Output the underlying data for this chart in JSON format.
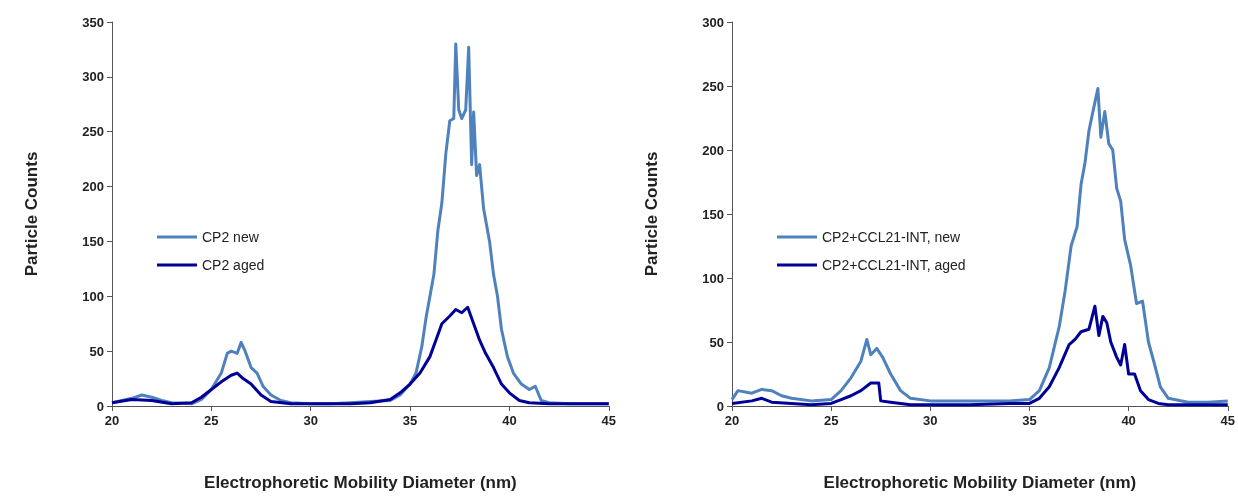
{
  "chart_data": [
    {
      "type": "line",
      "xlabel": "Electrophoretic Mobility Diameter (nm)",
      "ylabel": "Particle Counts",
      "xlim": [
        20,
        45
      ],
      "xticks": [
        20,
        25,
        30,
        35,
        40,
        45
      ],
      "ylim": [
        0,
        350
      ],
      "yticks": [
        0,
        50,
        100,
        150,
        200,
        250,
        300,
        350
      ],
      "grid": false,
      "legend": "left",
      "marker": "none",
      "line_style": "solid",
      "series": [
        {
          "name": "CP2 new",
          "color": "#4f81bd",
          "x": [
            20,
            21,
            21.5,
            22,
            22.5,
            23,
            24,
            24.5,
            25,
            25.5,
            25.8,
            26,
            26.3,
            26.5,
            26.7,
            27,
            27.3,
            27.6,
            28,
            28.5,
            29,
            30,
            31,
            32,
            33,
            34,
            34.5,
            35,
            35.3,
            35.6,
            35.8,
            36,
            36.2,
            36.4,
            36.6,
            36.8,
            37,
            37.2,
            37.3,
            37.45,
            37.6,
            37.8,
            37.95,
            38.1,
            38.2,
            38.35,
            38.5,
            38.7,
            39,
            39.2,
            39.4,
            39.6,
            39.9,
            40.2,
            40.6,
            41,
            41.3,
            41.6,
            42,
            43,
            44,
            45
          ],
          "values": [
            3,
            7,
            10,
            8,
            5,
            3,
            2,
            6,
            15,
            30,
            48,
            50,
            48,
            58,
            50,
            35,
            30,
            18,
            10,
            5,
            3,
            2,
            2,
            3,
            4,
            5,
            10,
            20,
            30,
            55,
            80,
            100,
            120,
            160,
            185,
            230,
            260,
            262,
            330,
            270,
            262,
            270,
            327,
            220,
            268,
            210,
            220,
            180,
            150,
            120,
            100,
            70,
            45,
            30,
            20,
            15,
            18,
            5,
            3,
            2,
            2,
            2
          ]
        },
        {
          "name": "CP2 aged",
          "color": "#000099",
          "x": [
            20,
            21,
            22,
            23,
            24,
            24.5,
            25,
            25.5,
            26,
            26.3,
            26.6,
            27,
            27.5,
            28,
            29,
            30,
            32,
            33,
            34,
            34.5,
            35,
            35.5,
            36,
            36.3,
            36.6,
            37,
            37.3,
            37.6,
            37.9,
            38.2,
            38.5,
            38.8,
            39.2,
            39.6,
            40,
            40.5,
            41,
            42,
            45
          ],
          "values": [
            3,
            6,
            5,
            2,
            3,
            8,
            15,
            22,
            28,
            30,
            25,
            20,
            10,
            4,
            2,
            2,
            2,
            3,
            6,
            12,
            20,
            30,
            45,
            60,
            75,
            82,
            88,
            85,
            90,
            75,
            60,
            48,
            35,
            20,
            12,
            5,
            3,
            2,
            2
          ]
        }
      ]
    },
    {
      "type": "line",
      "xlabel": "Electrophoretic Mobility Diameter (nm)",
      "ylabel": "Particle Counts",
      "xlim": [
        20,
        45
      ],
      "xticks": [
        20,
        25,
        30,
        35,
        40,
        45
      ],
      "ylim": [
        0,
        300
      ],
      "yticks": [
        0,
        50,
        100,
        150,
        200,
        250,
        300
      ],
      "grid": false,
      "legend": "left",
      "marker": "none",
      "line_style": "solid",
      "series": [
        {
          "name": "CP2+CCL21-INT, new",
          "color": "#4f81bd",
          "x": [
            20,
            20.3,
            21,
            21.5,
            22,
            22.5,
            23,
            24,
            25,
            25.5,
            26,
            26.5,
            26.8,
            27,
            27.3,
            27.6,
            28,
            28.5,
            29,
            30,
            31,
            32,
            33,
            34,
            35,
            35.5,
            36,
            36.5,
            36.8,
            37.1,
            37.4,
            37.6,
            37.8,
            38,
            38.2,
            38.45,
            38.6,
            38.8,
            39,
            39.2,
            39.4,
            39.6,
            39.8,
            40.1,
            40.4,
            40.7,
            41,
            41.3,
            41.6,
            42,
            43,
            44,
            45
          ],
          "values": [
            5,
            12,
            10,
            13,
            12,
            8,
            6,
            4,
            5,
            12,
            22,
            35,
            52,
            40,
            45,
            38,
            25,
            12,
            6,
            4,
            4,
            4,
            4,
            4,
            5,
            12,
            30,
            62,
            90,
            125,
            140,
            173,
            190,
            215,
            230,
            248,
            210,
            230,
            205,
            200,
            170,
            160,
            130,
            110,
            80,
            82,
            50,
            33,
            15,
            6,
            3,
            3,
            4
          ]
        },
        {
          "name": "CP2+CCL21-INT, aged",
          "color": "#000099",
          "x": [
            20,
            21,
            21.5,
            22,
            23,
            24,
            25,
            25.5,
            26,
            26.5,
            27,
            27.4,
            27.5,
            28,
            28.5,
            29,
            30,
            32,
            34,
            35,
            35.5,
            36,
            36.5,
            37,
            37.3,
            37.6,
            38,
            38.3,
            38.5,
            38.7,
            38.9,
            39.1,
            39.4,
            39.6,
            39.8,
            40,
            40.3,
            40.6,
            41,
            41.5,
            42,
            45
          ],
          "values": [
            2,
            4,
            6,
            3,
            2,
            1,
            2,
            5,
            8,
            12,
            18,
            18,
            4,
            3,
            2,
            1,
            1,
            1,
            2,
            2,
            6,
            15,
            30,
            48,
            52,
            58,
            60,
            78,
            55,
            70,
            65,
            50,
            38,
            32,
            48,
            25,
            25,
            12,
            5,
            2,
            1,
            1
          ]
        }
      ]
    }
  ]
}
